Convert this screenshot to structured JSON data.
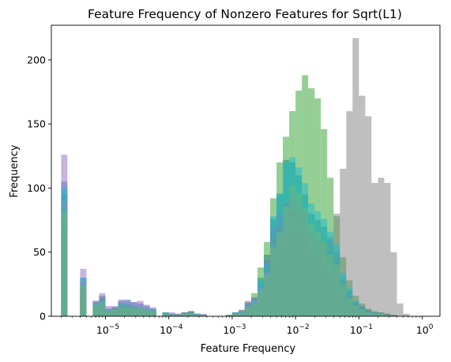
{
  "chart_data": {
    "type": "bar",
    "title": "Feature Frequency of Nonzero Features for Sqrt(L1)",
    "xlabel": "Feature Frequency",
    "ylabel": "Frequency",
    "x_scale": "log",
    "xlim": [
      1.4e-06,
      1.9
    ],
    "ylim": [
      0,
      227
    ],
    "y_ticks": [
      0,
      50,
      100,
      150,
      200
    ],
    "x_ticks": [
      {
        "base": "10",
        "exp": "−5",
        "value": 1e-05
      },
      {
        "base": "10",
        "exp": "−4",
        "value": 0.0001
      },
      {
        "base": "10",
        "exp": "−3",
        "value": 0.001
      },
      {
        "base": "10",
        "exp": "−2",
        "value": 0.01
      },
      {
        "base": "10",
        "exp": "−1",
        "value": 0.1
      },
      {
        "base": "10",
        "exp": "0",
        "value": 1
      }
    ],
    "bin_edges": [
      2e-06,
      2.51e-06,
      3.16e-06,
      3.98e-06,
      5.01e-06,
      6.31e-06,
      7.94e-06,
      1e-05,
      1.26e-05,
      1.58e-05,
      2e-05,
      2.51e-05,
      3.16e-05,
      3.98e-05,
      5.01e-05,
      6.31e-05,
      7.94e-05,
      0.0001,
      0.000126,
      0.000158,
      0.0002,
      0.000251,
      0.000316,
      0.000398,
      0.000501,
      0.000631,
      0.000794,
      0.001,
      0.00126,
      0.00158,
      0.002,
      0.00251,
      0.00316,
      0.00398,
      0.00501,
      0.00631,
      0.00794,
      0.01,
      0.0126,
      0.0158,
      0.02,
      0.0251,
      0.0316,
      0.0398,
      0.0501,
      0.0631,
      0.0794,
      0.1,
      0.126,
      0.158,
      0.2,
      0.251,
      0.316,
      0.398,
      0.501,
      0.631
    ],
    "series": [
      {
        "color": "#1f77b4",
        "values": [
          105,
          0,
          0,
          30,
          0,
          12,
          16,
          6,
          7,
          12,
          13,
          11,
          10,
          8,
          6,
          0,
          3,
          2,
          1,
          3,
          4,
          2,
          1,
          0,
          0,
          0,
          1,
          3,
          4,
          10,
          14,
          30,
          48,
          76,
          95,
          122,
          120,
          110,
          95,
          80,
          75,
          70,
          60,
          50,
          30,
          20,
          12,
          8,
          5,
          3,
          3,
          2,
          1,
          0,
          0
        ]
      },
      {
        "color": "#ff7f0e",
        "values": [
          80,
          0,
          0,
          22,
          0,
          8,
          12,
          5,
          6,
          8,
          8,
          7,
          6,
          5,
          4,
          0,
          2,
          2,
          1,
          2,
          2,
          1,
          1,
          0,
          0,
          0,
          1,
          2,
          3,
          7,
          10,
          20,
          38,
          62,
          70,
          88,
          92,
          86,
          80,
          66,
          58,
          56,
          48,
          42,
          24,
          15,
          8,
          5,
          3,
          2,
          2,
          1,
          1,
          0,
          0
        ]
      },
      {
        "color": "#2ca02c",
        "values": [
          95,
          0,
          0,
          26,
          0,
          10,
          14,
          5,
          7,
          10,
          9,
          8,
          7,
          6,
          5,
          0,
          3,
          2,
          2,
          3,
          4,
          2,
          1,
          0,
          0,
          0,
          1,
          3,
          5,
          11,
          18,
          38,
          58,
          92,
          120,
          140,
          160,
          176,
          188,
          178,
          170,
          146,
          108,
          78,
          46,
          28,
          16,
          10,
          6,
          4,
          3,
          2,
          1,
          0,
          0
        ]
      },
      {
        "color": "#d62728",
        "values": [
          75,
          0,
          0,
          22,
          0,
          8,
          10,
          4,
          5,
          7,
          7,
          6,
          5,
          5,
          3,
          0,
          2,
          1,
          1,
          2,
          2,
          1,
          1,
          0,
          0,
          0,
          1,
          2,
          3,
          6,
          10,
          18,
          30,
          52,
          62,
          70,
          82,
          76,
          66,
          52,
          48,
          44,
          38,
          32,
          18,
          11,
          6,
          4,
          3,
          2,
          1,
          1,
          0,
          0,
          0
        ]
      },
      {
        "color": "#9467bd",
        "values": [
          126,
          0,
          0,
          37,
          0,
          12,
          18,
          8,
          8,
          13,
          12,
          11,
          12,
          9,
          7,
          0,
          3,
          3,
          2,
          3,
          4,
          2,
          2,
          0,
          0,
          0,
          1,
          3,
          5,
          12,
          15,
          25,
          44,
          70,
          80,
          88,
          96,
          90,
          82,
          66,
          60,
          52,
          44,
          38,
          24,
          16,
          9,
          6,
          4,
          3,
          2,
          1,
          1,
          0,
          0
        ]
      },
      {
        "color": "#8c564b",
        "values": [
          70,
          0,
          0,
          18,
          0,
          7,
          9,
          4,
          4,
          6,
          6,
          5,
          5,
          4,
          3,
          0,
          2,
          1,
          1,
          2,
          2,
          1,
          1,
          0,
          0,
          0,
          1,
          2,
          3,
          6,
          8,
          16,
          26,
          42,
          54,
          62,
          70,
          66,
          58,
          48,
          44,
          36,
          32,
          26,
          16,
          10,
          6,
          4,
          2,
          1,
          1,
          1,
          0,
          0,
          0
        ]
      },
      {
        "color": "#e377c2",
        "values": [
          90,
          0,
          0,
          28,
          0,
          9,
          12,
          5,
          6,
          9,
          8,
          8,
          7,
          6,
          4,
          0,
          2,
          2,
          1,
          2,
          3,
          2,
          1,
          0,
          0,
          0,
          1,
          2,
          4,
          8,
          12,
          22,
          34,
          56,
          66,
          74,
          78,
          74,
          70,
          60,
          52,
          48,
          40,
          34,
          20,
          14,
          8,
          5,
          3,
          2,
          2,
          1,
          0,
          0,
          0
        ]
      },
      {
        "color": "#7f7f7f",
        "values": [
          85,
          0,
          0,
          24,
          0,
          8,
          11,
          4,
          5,
          8,
          8,
          7,
          6,
          5,
          4,
          0,
          2,
          1,
          1,
          2,
          3,
          1,
          1,
          0,
          0,
          0,
          1,
          2,
          3,
          7,
          10,
          20,
          32,
          56,
          68,
          76,
          80,
          76,
          72,
          64,
          60,
          58,
          62,
          80,
          115,
          160,
          217,
          172,
          156,
          104,
          108,
          104,
          50,
          10,
          2
        ]
      },
      {
        "color": "#bcbd22",
        "values": [
          82,
          0,
          0,
          24,
          0,
          8,
          11,
          4,
          5,
          7,
          7,
          6,
          6,
          5,
          4,
          0,
          2,
          1,
          1,
          2,
          2,
          1,
          1,
          0,
          0,
          0,
          1,
          2,
          3,
          7,
          10,
          20,
          32,
          54,
          66,
          86,
          102,
          96,
          84,
          72,
          66,
          58,
          48,
          40,
          24,
          14,
          8,
          5,
          3,
          2,
          2,
          1,
          0,
          0,
          0
        ]
      },
      {
        "color": "#17becf",
        "values": [
          100,
          0,
          0,
          30,
          0,
          10,
          13,
          5,
          6,
          10,
          9,
          8,
          7,
          6,
          5,
          0,
          3,
          2,
          1,
          2,
          3,
          2,
          1,
          0,
          0,
          0,
          1,
          3,
          4,
          9,
          13,
          28,
          42,
          78,
          96,
          120,
          124,
          116,
          104,
          88,
          82,
          76,
          66,
          56,
          34,
          22,
          12,
          7,
          4,
          3,
          2,
          1,
          0,
          0,
          0
        ]
      }
    ]
  }
}
